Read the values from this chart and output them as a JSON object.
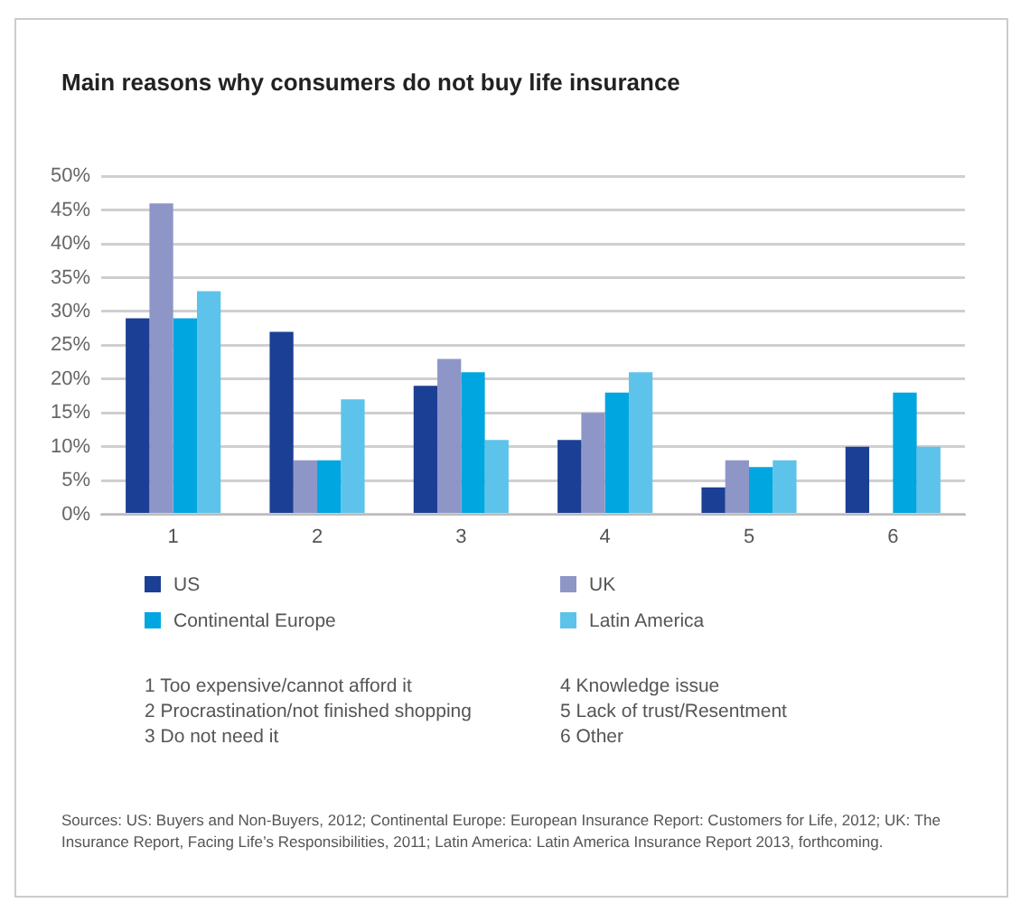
{
  "chart_data": {
    "type": "bar",
    "title": "Main reasons why consumers do not buy life insurance",
    "categories": [
      "1",
      "2",
      "3",
      "4",
      "5",
      "6"
    ],
    "series": [
      {
        "name": "US",
        "color": "#1b3f94",
        "values": [
          29,
          27,
          19,
          11,
          4,
          10
        ]
      },
      {
        "name": "UK",
        "color": "#8e96c8",
        "values": [
          46,
          8,
          23,
          15,
          8,
          null
        ]
      },
      {
        "name": "Continental Europe",
        "color": "#00a6e0",
        "values": [
          29,
          8,
          21,
          18,
          7,
          18
        ]
      },
      {
        "name": "Latin America",
        "color": "#5ec3ea",
        "values": [
          33,
          17,
          11,
          21,
          8,
          10
        ]
      }
    ],
    "ylim": [
      0,
      50
    ],
    "yticks": [
      {
        "value": 0,
        "label": "0%"
      },
      {
        "value": 5,
        "label": "5%"
      },
      {
        "value": 10,
        "label": "10%"
      },
      {
        "value": 15,
        "label": "15%"
      },
      {
        "value": 20,
        "label": "20%"
      },
      {
        "value": 25,
        "label": "25%"
      },
      {
        "value": 30,
        "label": "30%"
      },
      {
        "value": 35,
        "label": "35%"
      },
      {
        "value": 40,
        "label": "40%"
      },
      {
        "value": 45,
        "label": "45%"
      },
      {
        "value": 50,
        "label": "50%"
      }
    ],
    "grid": "y",
    "legend": "bottom",
    "annotations": [
      "1  Too expensive/cannot afford it",
      "2  Procrastination/not finished shopping",
      "3  Do not need it",
      "4  Knowledge issue",
      "5  Lack of trust/Resentment",
      "6  Other",
      "Sources: US: Buyers and Non-Buyers, 2012; Continental Europe: European Insurance Report: Customers for Life, 2012; UK: The Insurance Report, Facing Life’s Responsibilities, 2011; Latin America: Latin America Insurance Report 2013, forthcoming."
    ]
  }
}
